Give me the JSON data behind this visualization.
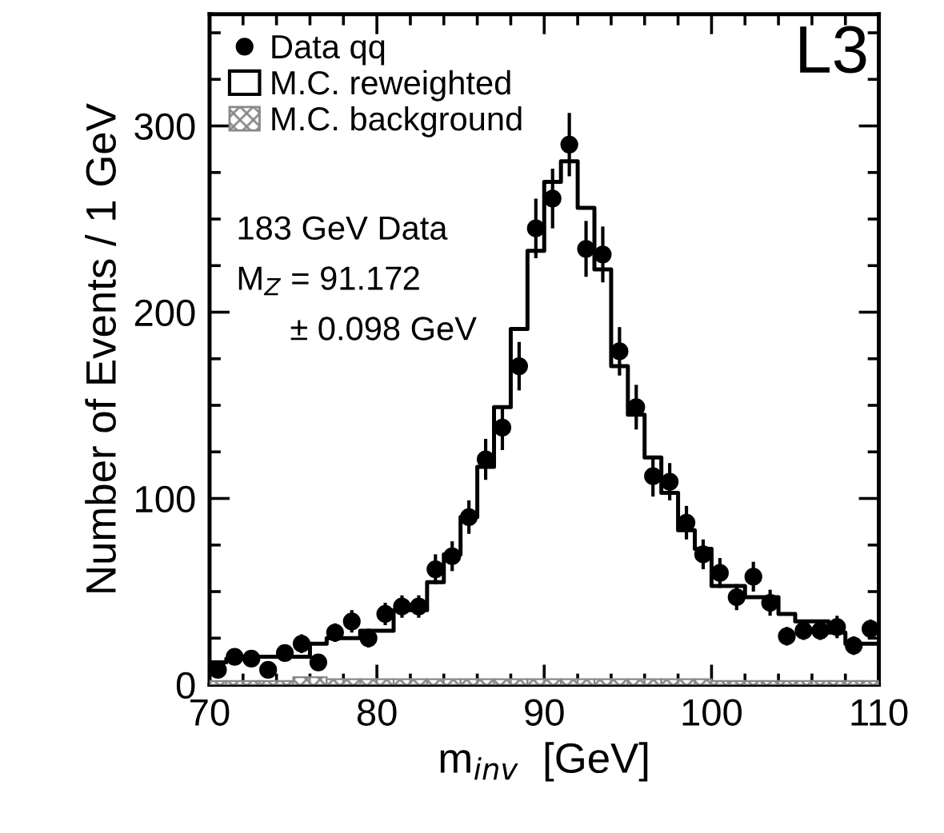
{
  "chart_data": {
    "type": "histogram",
    "xlabel": "m$_{inv}$  [GeV]",
    "ylabel": "Number of Events / 1 GeV",
    "bins": [
      70,
      71,
      72,
      73,
      74,
      75,
      76,
      77,
      78,
      79,
      80,
      81,
      82,
      83,
      84,
      85,
      86,
      87,
      88,
      89,
      90,
      91,
      92,
      93,
      94,
      95,
      96,
      97,
      98,
      99,
      100,
      101,
      102,
      103,
      104,
      105,
      106,
      107,
      108,
      109,
      110
    ],
    "series": [
      {
        "name": "Data qq",
        "type": "scatter",
        "marker": "circle",
        "color": "#000000",
        "x": [
          70.5,
          71.5,
          72.5,
          73.5,
          74.5,
          75.5,
          76.5,
          77.5,
          78.5,
          79.5,
          80.5,
          81.5,
          82.5,
          83.5,
          84.5,
          85.5,
          86.5,
          87.5,
          88.5,
          89.5,
          90.5,
          91.5,
          92.5,
          93.5,
          94.5,
          95.5,
          96.5,
          97.5,
          98.5,
          99.5,
          100.5,
          101.5,
          102.5,
          103.5,
          104.5,
          105.5,
          106.5,
          107.5,
          108.5,
          109.5
        ],
        "values": [
          8,
          15,
          14,
          8,
          17,
          22,
          12,
          28,
          34,
          25,
          38,
          42,
          42,
          62,
          69,
          90,
          121,
          138,
          171,
          245,
          261,
          290,
          234,
          231,
          179,
          149,
          112,
          109,
          87,
          70,
          60,
          47,
          58,
          44,
          26,
          29,
          29,
          31,
          21,
          30
        ],
        "errors": [
          3,
          4,
          4,
          3,
          4,
          5,
          3,
          5,
          6,
          5,
          6,
          6,
          6,
          8,
          8,
          9,
          11,
          12,
          13,
          16,
          16,
          17,
          15,
          15,
          13,
          12,
          11,
          10,
          9,
          8,
          8,
          7,
          8,
          7,
          5,
          5,
          5,
          6,
          5,
          5
        ]
      },
      {
        "name": "M.C. reweighted",
        "type": "step",
        "marker": "none",
        "color": "#000000",
        "x": [
          70,
          71,
          72,
          73,
          74,
          75,
          76,
          77,
          78,
          79,
          80,
          81,
          82,
          83,
          84,
          85,
          86,
          87,
          88,
          89,
          90,
          91,
          92,
          93,
          94,
          95,
          96,
          97,
          98,
          99,
          100,
          101,
          102,
          103,
          104,
          105,
          106,
          107,
          108,
          109,
          110
        ],
        "values": [
          12,
          14,
          15,
          15,
          15,
          15,
          22,
          25,
          25,
          29,
          29,
          40,
          40,
          55,
          70,
          90,
          117,
          149,
          191,
          233,
          270,
          281,
          256,
          223,
          171,
          145,
          122,
          103,
          83,
          73,
          53,
          53,
          47,
          47,
          38,
          34,
          34,
          28,
          22,
          22,
          22
        ]
      },
      {
        "name": "M.C. background",
        "color": "#888888",
        "values": [
          2,
          2,
          2,
          2,
          2,
          4,
          4,
          3,
          3,
          3,
          3,
          3,
          3,
          3,
          3,
          3,
          3,
          3,
          3,
          3,
          3,
          3,
          3,
          3,
          3,
          3,
          3,
          3,
          3,
          3,
          2,
          2,
          2,
          2,
          2,
          2,
          2,
          2,
          2,
          2
        ]
      }
    ],
    "xlim": [
      70,
      110
    ],
    "xticks": [
      70,
      80,
      90,
      100,
      110
    ],
    "ylim": [
      0,
      360
    ],
    "yticks": [
      0,
      100,
      200,
      300
    ],
    "legend": "top left",
    "grid": false,
    "annotations": [
      "L3",
      "183 GeV Data",
      "M$_{Z}$ = 91.172",
      "± 0.098 GeV"
    ]
  }
}
